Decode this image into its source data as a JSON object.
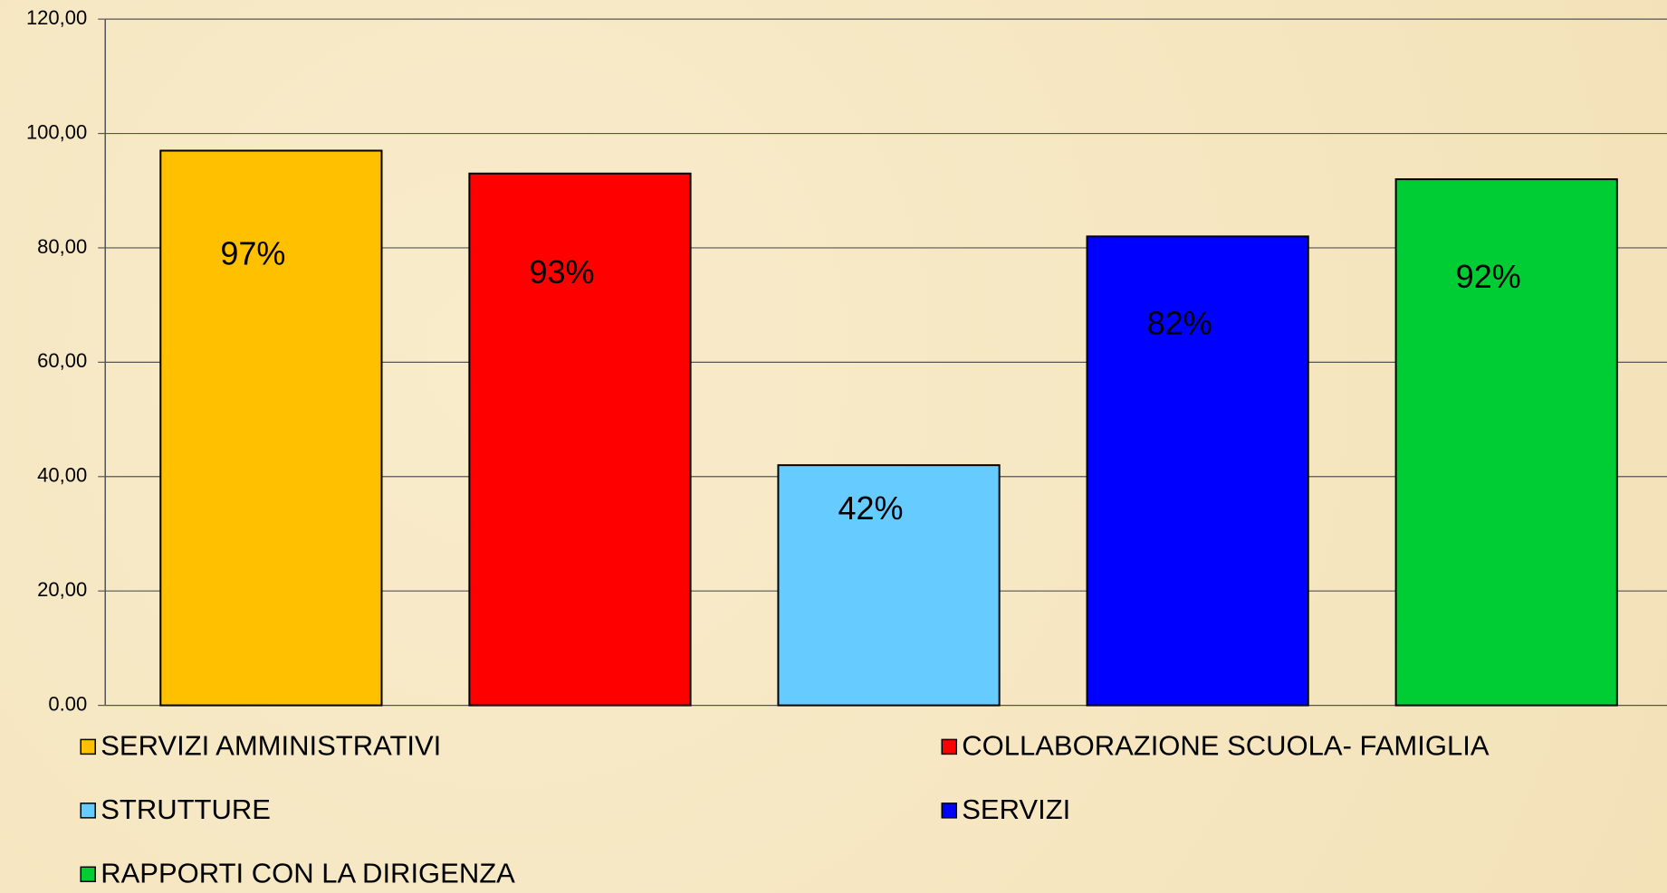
{
  "chart_data": {
    "type": "bar",
    "series": [
      {
        "name": "SERVIZI AMMINISTRATIVI",
        "color": "#ffc000",
        "values": [
          97
        ],
        "value_labels": [
          "97%"
        ]
      },
      {
        "name": "COLLABORAZIONE SCUOLA- FAMIGLIA",
        "color": "#ff0000",
        "values": [
          93
        ],
        "value_labels": [
          "93%"
        ]
      },
      {
        "name": "STRUTTURE",
        "color": "#66ccff",
        "values": [
          42
        ],
        "value_labels": [
          "42%"
        ]
      },
      {
        "name": "SERVIZI",
        "color": "#0000ff",
        "values": [
          82
        ],
        "value_labels": [
          "82%"
        ]
      },
      {
        "name": "RAPPORTI CON LA DIRIGENZA",
        "color": "#00cc33",
        "values": [
          92
        ],
        "value_labels": [
          "92%"
        ]
      }
    ],
    "ylim": [
      0,
      120
    ],
    "yticks": [
      {
        "value": 0,
        "label": "0.00"
      },
      {
        "value": 20,
        "label": "20,00"
      },
      {
        "value": 40,
        "label": "40,00"
      },
      {
        "value": 60,
        "label": "60,00"
      },
      {
        "value": 80,
        "label": "80,00"
      },
      {
        "value": 100,
        "label": "100,00"
      },
      {
        "value": 120,
        "label": "120,00"
      }
    ],
    "grid": true
  }
}
